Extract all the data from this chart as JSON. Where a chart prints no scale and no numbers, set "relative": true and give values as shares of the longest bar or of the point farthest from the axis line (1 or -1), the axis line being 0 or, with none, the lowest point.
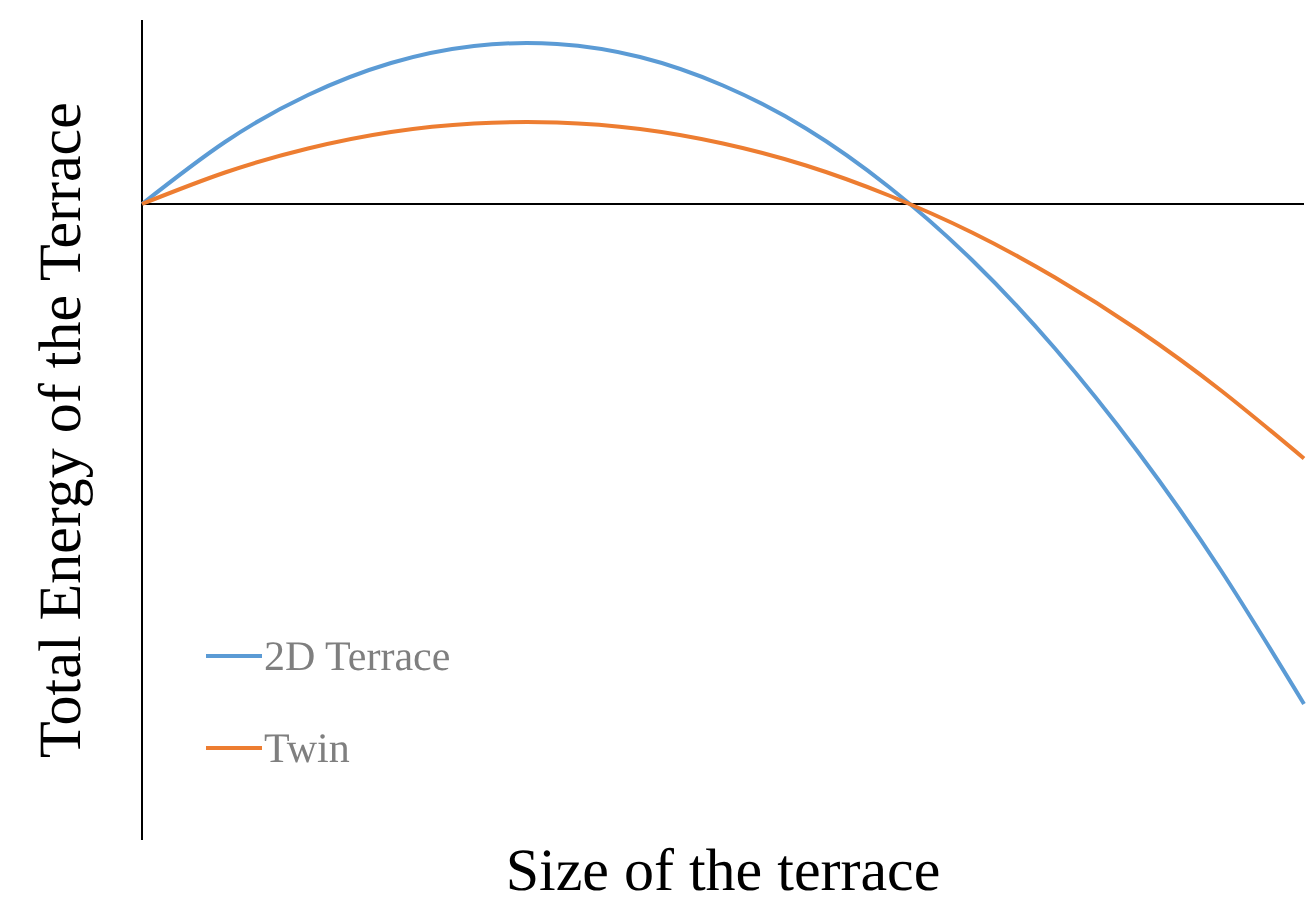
{
  "chart_data": {
    "type": "line",
    "relative": true,
    "xlabel": "Size of the terrace",
    "ylabel": "Total Energy of the Terrace",
    "legend": "bottom left",
    "marker": "none",
    "line_style": "solid",
    "categories": [
      null,
      null,
      null,
      null,
      null,
      null,
      null,
      null,
      null,
      null,
      null,
      null,
      null,
      null,
      null
    ],
    "series": [
      {
        "name": "2D Terrace",
        "color": "#5b9bd5",
        "values": [
          0,
          0.124,
          0.218,
          0.282,
          0.316,
          0.32,
          0.294,
          0.237,
          0.151,
          0.034,
          -0.112,
          -0.289,
          -0.496,
          -0.733,
          -1
        ]
      },
      {
        "name": "Twin",
        "color": "#ed7d31",
        "values": [
          0,
          0.063,
          0.111,
          0.144,
          0.161,
          0.163,
          0.15,
          0.121,
          0.077,
          0.017,
          -0.057,
          -0.147,
          -0.252,
          -0.373,
          -0.509
        ]
      }
    ]
  }
}
